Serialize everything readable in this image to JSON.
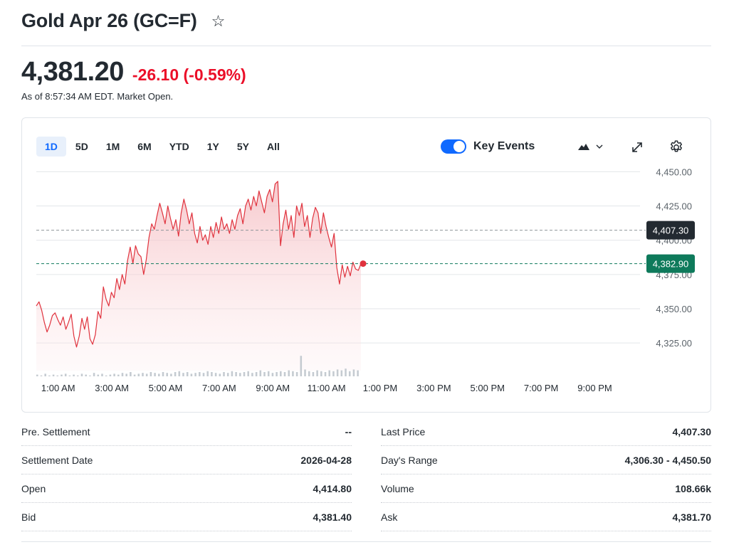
{
  "header": {
    "title": "Gold Apr 26 (GC=F)",
    "star_icon": "star-outline-icon"
  },
  "quote": {
    "price": "4,381.20",
    "change": "-26.10 (-0.59%)",
    "as_of": "As of 8:57:34 AM EDT. Market Open.",
    "change_color": "#eb0f29"
  },
  "chart_controls": {
    "ranges": [
      "1D",
      "5D",
      "1M",
      "6M",
      "YTD",
      "1Y",
      "5Y",
      "All"
    ],
    "active_range": "1D",
    "key_events_label": "Key Events",
    "key_events_on": true,
    "accent_color": "#0f69ff"
  },
  "chart_data": {
    "type": "area",
    "title": "",
    "x_tick_labels": [
      "1:00 AM",
      "3:00 AM",
      "5:00 AM",
      "7:00 AM",
      "9:00 AM",
      "11:00 AM",
      "1:00 PM",
      "3:00 PM",
      "5:00 PM",
      "7:00 PM",
      "9:00 PM"
    ],
    "y_tick_labels": [
      "4,450.00",
      "4,425.00",
      "4,400.00",
      "4,375.00",
      "4,350.00",
      "4,325.00"
    ],
    "ylim": [
      4310,
      4458
    ],
    "xlim_hours": [
      0,
      22.5
    ],
    "series": [
      {
        "color": "#e0323d",
        "points": [
          [
            0.0,
            4352
          ],
          [
            0.1,
            4355
          ],
          [
            0.2,
            4349
          ],
          [
            0.3,
            4340
          ],
          [
            0.4,
            4333
          ],
          [
            0.5,
            4338
          ],
          [
            0.6,
            4345
          ],
          [
            0.7,
            4347
          ],
          [
            0.8,
            4342
          ],
          [
            0.9,
            4338
          ],
          [
            1.0,
            4344
          ],
          [
            1.1,
            4335
          ],
          [
            1.2,
            4340
          ],
          [
            1.3,
            4346
          ],
          [
            1.4,
            4330
          ],
          [
            1.5,
            4322
          ],
          [
            1.6,
            4330
          ],
          [
            1.7,
            4343
          ],
          [
            1.8,
            4335
          ],
          [
            1.9,
            4344
          ],
          [
            2.0,
            4328
          ],
          [
            2.1,
            4324
          ],
          [
            2.2,
            4331
          ],
          [
            2.3,
            4348
          ],
          [
            2.4,
            4343
          ],
          [
            2.5,
            4366
          ],
          [
            2.6,
            4357
          ],
          [
            2.7,
            4352
          ],
          [
            2.8,
            4362
          ],
          [
            2.9,
            4358
          ],
          [
            3.0,
            4372
          ],
          [
            3.1,
            4364
          ],
          [
            3.2,
            4375
          ],
          [
            3.3,
            4368
          ],
          [
            3.4,
            4385
          ],
          [
            3.5,
            4395
          ],
          [
            3.6,
            4383
          ],
          [
            3.7,
            4396
          ],
          [
            3.8,
            4390
          ],
          [
            3.9,
            4388
          ],
          [
            4.0,
            4375
          ],
          [
            4.1,
            4386
          ],
          [
            4.2,
            4402
          ],
          [
            4.3,
            4412
          ],
          [
            4.4,
            4408
          ],
          [
            4.5,
            4418
          ],
          [
            4.6,
            4427
          ],
          [
            4.7,
            4420
          ],
          [
            4.8,
            4412
          ],
          [
            4.9,
            4425
          ],
          [
            5.0,
            4416
          ],
          [
            5.1,
            4408
          ],
          [
            5.2,
            4415
          ],
          [
            5.3,
            4403
          ],
          [
            5.4,
            4420
          ],
          [
            5.5,
            4430
          ],
          [
            5.6,
            4422
          ],
          [
            5.7,
            4412
          ],
          [
            5.8,
            4420
          ],
          [
            5.9,
            4405
          ],
          [
            6.0,
            4398
          ],
          [
            6.1,
            4410
          ],
          [
            6.2,
            4400
          ],
          [
            6.3,
            4404
          ],
          [
            6.4,
            4397
          ],
          [
            6.5,
            4410
          ],
          [
            6.6,
            4402
          ],
          [
            6.7,
            4413
          ],
          [
            6.8,
            4405
          ],
          [
            6.9,
            4417
          ],
          [
            7.0,
            4408
          ],
          [
            7.1,
            4412
          ],
          [
            7.2,
            4405
          ],
          [
            7.3,
            4415
          ],
          [
            7.4,
            4408
          ],
          [
            7.5,
            4418
          ],
          [
            7.6,
            4423
          ],
          [
            7.7,
            4412
          ],
          [
            7.8,
            4425
          ],
          [
            7.9,
            4430
          ],
          [
            8.0,
            4422
          ],
          [
            8.1,
            4432
          ],
          [
            8.2,
            4425
          ],
          [
            8.3,
            4436
          ],
          [
            8.4,
            4428
          ],
          [
            8.5,
            4420
          ],
          [
            8.6,
            4432
          ],
          [
            8.7,
            4437
          ],
          [
            8.8,
            4428
          ],
          [
            8.9,
            4441
          ],
          [
            9.0,
            4443
          ],
          [
            9.1,
            4396
          ],
          [
            9.2,
            4412
          ],
          [
            9.3,
            4422
          ],
          [
            9.4,
            4408
          ],
          [
            9.5,
            4418
          ],
          [
            9.6,
            4402
          ],
          [
            9.7,
            4425
          ],
          [
            9.8,
            4418
          ],
          [
            9.9,
            4427
          ],
          [
            10.0,
            4410
          ],
          [
            10.1,
            4418
          ],
          [
            10.2,
            4402
          ],
          [
            10.3,
            4416
          ],
          [
            10.4,
            4424
          ],
          [
            10.5,
            4420
          ],
          [
            10.6,
            4405
          ],
          [
            10.7,
            4420
          ],
          [
            10.8,
            4410
          ],
          [
            10.9,
            4402
          ],
          [
            11.0,
            4395
          ],
          [
            11.1,
            4405
          ],
          [
            11.2,
            4380
          ],
          [
            11.3,
            4368
          ],
          [
            11.4,
            4382
          ],
          [
            11.5,
            4373
          ],
          [
            11.6,
            4381
          ],
          [
            11.7,
            4374
          ],
          [
            11.8,
            4384
          ],
          [
            11.9,
            4379
          ],
          [
            12.0,
            4378
          ],
          [
            12.1,
            4382.9
          ]
        ]
      }
    ],
    "reference_lines": [
      {
        "label": "4,407.30",
        "value": 4407.3,
        "color": "#232a31",
        "style": "dashed"
      },
      {
        "label": "4,382.90",
        "value": 4382.9,
        "color": "#0e7a5b",
        "style": "dashed"
      }
    ],
    "volume": [
      2,
      1,
      3,
      1,
      2,
      1,
      2,
      3,
      1,
      2,
      1,
      3,
      2,
      1,
      4,
      2,
      3,
      1,
      2,
      3,
      2,
      4,
      3,
      5,
      2,
      3,
      4,
      3,
      5,
      4,
      3,
      5,
      4,
      3,
      5,
      6,
      4,
      5,
      3,
      4,
      5,
      4,
      6,
      5,
      4,
      3,
      5,
      4,
      6,
      5,
      4,
      5,
      6,
      4,
      5,
      7,
      5,
      6,
      4,
      5,
      6,
      5,
      7,
      6,
      5,
      24,
      8,
      6,
      5,
      7,
      6,
      5,
      7,
      6,
      8,
      7,
      9,
      6,
      8,
      7
    ],
    "grid": true,
    "legend": "none"
  },
  "stats": {
    "left": [
      {
        "label": "Pre. Settlement",
        "value": "--"
      },
      {
        "label": "Settlement Date",
        "value": "2026-04-28"
      },
      {
        "label": "Open",
        "value": "4,414.80"
      },
      {
        "label": "Bid",
        "value": "4,381.40"
      }
    ],
    "right": [
      {
        "label": "Last Price",
        "value": "4,407.30"
      },
      {
        "label": "Day's Range",
        "value": "4,306.30 - 4,450.50"
      },
      {
        "label": "Volume",
        "value": "108.66k"
      },
      {
        "label": "Ask",
        "value": "4,381.70"
      }
    ]
  }
}
